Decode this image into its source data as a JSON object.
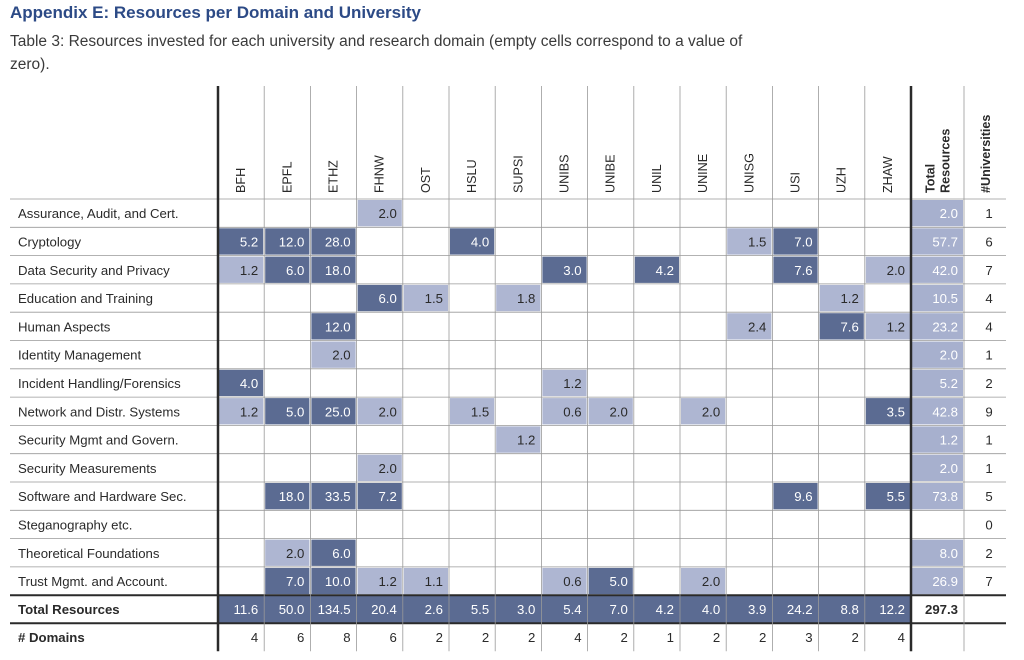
{
  "heading": "Appendix E: Resources per Domain and University",
  "caption": "Table 3: Resources invested for each university and research domain (empty cells correspond to a value of zero).",
  "columns": [
    "BFH",
    "EPFL",
    "ETHZ",
    "FHNW",
    "OST",
    "HSLU",
    "SUPSI",
    "UNIBS",
    "UNIBE",
    "UNIL",
    "UNINE",
    "UNISG",
    "USI",
    "UZH",
    "ZHAW"
  ],
  "total_column_label": [
    "Total",
    "Resources"
  ],
  "count_column_label": "#Universities",
  "rows": [
    {
      "label": "Assurance, Audit, and Cert.",
      "values": [
        "",
        "",
        "",
        "2.0",
        "",
        "",
        "",
        "",
        "",
        "",
        "",
        "",
        "",
        "",
        ""
      ],
      "total": "2.0",
      "count": "1"
    },
    {
      "label": "Cryptology",
      "values": [
        "5.2",
        "12.0",
        "28.0",
        "",
        "",
        "4.0",
        "",
        "",
        "",
        "",
        "",
        "1.5",
        "7.0",
        "",
        ""
      ],
      "total": "57.7",
      "count": "6"
    },
    {
      "label": "Data Security and Privacy",
      "values": [
        "1.2",
        "6.0",
        "18.0",
        "",
        "",
        "",
        "",
        "3.0",
        "",
        "4.2",
        "",
        "",
        "7.6",
        "",
        "2.0"
      ],
      "total": "42.0",
      "count": "7"
    },
    {
      "label": "Education and Training",
      "values": [
        "",
        "",
        "",
        "6.0",
        "1.5",
        "",
        "1.8",
        "",
        "",
        "",
        "",
        "",
        "",
        "1.2",
        ""
      ],
      "total": "10.5",
      "count": "4"
    },
    {
      "label": "Human Aspects",
      "values": [
        "",
        "",
        "12.0",
        "",
        "",
        "",
        "",
        "",
        "",
        "",
        "",
        "2.4",
        "",
        "7.6",
        "1.2"
      ],
      "total": "23.2",
      "count": "4"
    },
    {
      "label": "Identity Management",
      "values": [
        "",
        "",
        "2.0",
        "",
        "",
        "",
        "",
        "",
        "",
        "",
        "",
        "",
        "",
        "",
        ""
      ],
      "total": "2.0",
      "count": "1"
    },
    {
      "label": "Incident Handling/Forensics",
      "values": [
        "4.0",
        "",
        "",
        "",
        "",
        "",
        "",
        "1.2",
        "",
        "",
        "",
        "",
        "",
        "",
        ""
      ],
      "total": "5.2",
      "count": "2"
    },
    {
      "label": "Network and Distr. Systems",
      "values": [
        "1.2",
        "5.0",
        "25.0",
        "2.0",
        "",
        "1.5",
        "",
        "0.6",
        "2.0",
        "",
        "2.0",
        "",
        "",
        "",
        "3.5"
      ],
      "total": "42.8",
      "count": "9"
    },
    {
      "label": "Security Mgmt and Govern.",
      "values": [
        "",
        "",
        "",
        "",
        "",
        "",
        "1.2",
        "",
        "",
        "",
        "",
        "",
        "",
        "",
        ""
      ],
      "total": "1.2",
      "count": "1"
    },
    {
      "label": "Security Measurements",
      "values": [
        "",
        "",
        "",
        "2.0",
        "",
        "",
        "",
        "",
        "",
        "",
        "",
        "",
        "",
        "",
        ""
      ],
      "total": "2.0",
      "count": "1"
    },
    {
      "label": "Software and Hardware Sec.",
      "values": [
        "",
        "18.0",
        "33.5",
        "7.2",
        "",
        "",
        "",
        "",
        "",
        "",
        "",
        "",
        "9.6",
        "",
        "5.5"
      ],
      "total": "73.8",
      "count": "5"
    },
    {
      "label": "Steganography etc.",
      "values": [
        "",
        "",
        "",
        "",
        "",
        "",
        "",
        "",
        "",
        "",
        "",
        "",
        "",
        "",
        ""
      ],
      "total": "",
      "count": "0"
    },
    {
      "label": "Theoretical Foundations",
      "values": [
        "",
        "2.0",
        "6.0",
        "",
        "",
        "",
        "",
        "",
        "",
        "",
        "",
        "",
        "",
        "",
        ""
      ],
      "total": "8.0",
      "count": "2"
    },
    {
      "label": "Trust Mgmt. and Account.",
      "values": [
        "",
        "7.0",
        "10.0",
        "1.2",
        "1.1",
        "",
        "",
        "0.6",
        "5.0",
        "",
        "2.0",
        "",
        "",
        "",
        ""
      ],
      "total": "26.9",
      "count": "7"
    }
  ],
  "totals_row": {
    "label": "Total Resources",
    "values": [
      "11.6",
      "50.0",
      "134.5",
      "20.4",
      "2.6",
      "5.5",
      "3.0",
      "5.4",
      "7.0",
      "4.2",
      "4.0",
      "3.9",
      "24.2",
      "8.8",
      "12.2"
    ],
    "total": "297.3"
  },
  "domains_row": {
    "label": "# Domains",
    "values": [
      "4",
      "6",
      "8",
      "6",
      "2",
      "2",
      "2",
      "4",
      "2",
      "1",
      "2",
      "2",
      "3",
      "2",
      "4"
    ]
  },
  "colors": {
    "dark": "#5b6b92",
    "light": "#aeb6d2",
    "total": "#a7b0ce",
    "dark_text": "#ffffff",
    "light_text": "#2a2a2a",
    "rule": "#2a2a2a",
    "grid": "#999999"
  }
}
